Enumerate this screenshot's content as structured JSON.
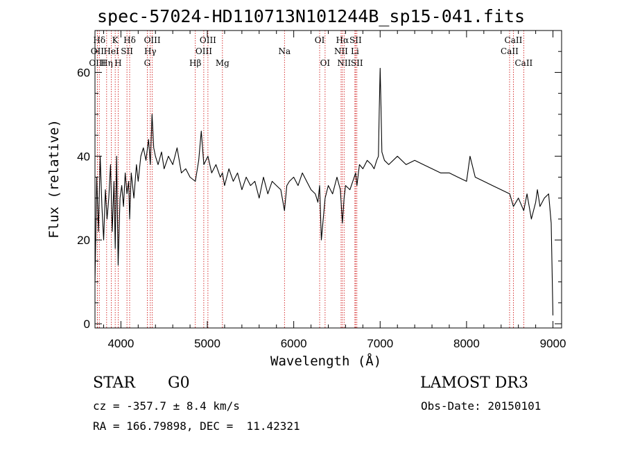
{
  "chart_data": {
    "type": "line",
    "title": "spec-57024-HD110713N101244B_sp15-041.fits",
    "xlabel": "Wavelength (Å)",
    "ylabel": "Flux (relative)",
    "xlim": [
      3700,
      9100
    ],
    "ylim": [
      -1,
      70
    ],
    "x_ticks": [
      4000,
      5000,
      6000,
      7000,
      8000,
      9000
    ],
    "y_ticks": [
      0,
      20,
      40,
      60
    ],
    "grid": false,
    "line_color": "#000000",
    "marker_color": "#cc0000",
    "spectrum": {
      "name": "",
      "x": [
        3700,
        3720,
        3740,
        3760,
        3780,
        3800,
        3820,
        3840,
        3860,
        3880,
        3900,
        3920,
        3934,
        3950,
        3968,
        3990,
        4010,
        4030,
        4050,
        4070,
        4090,
        4101,
        4120,
        4150,
        4180,
        4200,
        4230,
        4260,
        4290,
        4320,
        4340,
        4360,
        4380,
        4400,
        4430,
        4470,
        4500,
        4550,
        4600,
        4650,
        4700,
        4750,
        4800,
        4861,
        4900,
        4930,
        4960,
        5007,
        5050,
        5100,
        5150,
        5175,
        5200,
        5250,
        5300,
        5350,
        5400,
        5450,
        5500,
        5550,
        5600,
        5650,
        5700,
        5750,
        5800,
        5850,
        5893,
        5920,
        5950,
        6000,
        6050,
        6100,
        6150,
        6200,
        6250,
        6280,
        6300,
        6320,
        6363,
        6400,
        6450,
        6500,
        6540,
        6563,
        6583,
        6600,
        6650,
        6700,
        6716,
        6731,
        6760,
        6800,
        6850,
        6900,
        6930,
        6960,
        6980,
        6990,
        7000,
        7010,
        7020,
        7050,
        7100,
        7200,
        7300,
        7400,
        7500,
        7600,
        7700,
        7800,
        7900,
        8000,
        8040,
        8100,
        8200,
        8300,
        8400,
        8500,
        8542,
        8600,
        8662,
        8700,
        8750,
        8800,
        8820,
        8850,
        8900,
        8950,
        8980,
        9000
      ],
      "y": [
        10,
        35,
        22,
        40,
        28,
        20,
        32,
        25,
        30,
        38,
        22,
        34,
        18,
        40,
        14,
        30,
        33,
        28,
        36,
        31,
        34,
        25,
        36,
        30,
        38,
        34,
        40,
        42,
        39,
        44,
        38,
        50,
        42,
        40,
        38,
        41,
        37,
        40,
        38,
        42,
        36,
        37,
        35,
        34,
        39,
        46,
        38,
        40,
        36,
        38,
        35,
        36,
        33,
        37,
        34,
        36,
        32,
        35,
        33,
        34,
        30,
        35,
        31,
        34,
        33,
        32,
        27,
        33,
        34,
        35,
        33,
        36,
        34,
        32,
        31,
        29,
        33,
        20,
        30,
        33,
        31,
        35,
        32,
        24,
        30,
        33,
        32,
        35,
        36,
        33,
        38,
        37,
        39,
        38,
        37,
        39,
        40,
        51,
        61,
        52,
        41,
        39,
        38,
        40,
        38,
        39,
        38,
        37,
        36,
        36,
        35,
        34,
        40,
        35,
        34,
        33,
        32,
        31,
        28,
        30,
        27,
        31,
        25,
        29,
        32,
        28,
        30,
        31,
        24,
        2
      ]
    },
    "lines": [
      {
        "label": "Hδ",
        "wave": 3750,
        "row": 0
      },
      {
        "label": "K",
        "wave": 3934,
        "row": 0
      },
      {
        "label": "Hδ",
        "wave": 4101,
        "row": 0
      },
      {
        "label": "OIII",
        "wave": 4363,
        "row": 0
      },
      {
        "label": "OIII",
        "wave": 5007,
        "row": 0
      },
      {
        "label": "OI",
        "wave": 6300,
        "row": 0
      },
      {
        "label": "Hα",
        "wave": 6563,
        "row": 0
      },
      {
        "label": "SII",
        "wave": 6716,
        "row": 0
      },
      {
        "label": "CaII",
        "wave": 8542,
        "row": 0
      },
      {
        "label": "OII",
        "wave": 3727,
        "row": 1
      },
      {
        "label": "HeI",
        "wave": 3889,
        "row": 1
      },
      {
        "label": "SII",
        "wave": 4070,
        "row": 1
      },
      {
        "label": "Hγ",
        "wave": 4340,
        "row": 1
      },
      {
        "label": "OIII",
        "wave": 4959,
        "row": 1
      },
      {
        "label": "Na",
        "wave": 5893,
        "row": 1
      },
      {
        "label": "NII",
        "wave": 6548,
        "row": 1
      },
      {
        "label": "Li",
        "wave": 6708,
        "row": 1
      },
      {
        "label": "CaII",
        "wave": 8498,
        "row": 1
      },
      {
        "label": "OIII",
        "wave": 3727,
        "row": 2
      },
      {
        "label": "Hη",
        "wave": 3835,
        "row": 2
      },
      {
        "label": "H",
        "wave": 3968,
        "row": 2
      },
      {
        "label": "G",
        "wave": 4305,
        "row": 2
      },
      {
        "label": "Hβ",
        "wave": 4861,
        "row": 2
      },
      {
        "label": "Mg",
        "wave": 5175,
        "row": 2
      },
      {
        "label": "OI",
        "wave": 6363,
        "row": 2
      },
      {
        "label": "NII",
        "wave": 6583,
        "row": 2
      },
      {
        "label": "SII",
        "wave": 6731,
        "row": 2
      },
      {
        "label": "CaII",
        "wave": 8662,
        "row": 2
      }
    ]
  },
  "info": {
    "object_class": "STAR",
    "subclass": "G0",
    "survey": "LAMOST DR3",
    "cz": "cz = -357.7 ± 8.4 km/s",
    "obs_date": "Obs-Date: 20150101",
    "coords": "RA = 166.79898, DEC =  11.42321"
  }
}
